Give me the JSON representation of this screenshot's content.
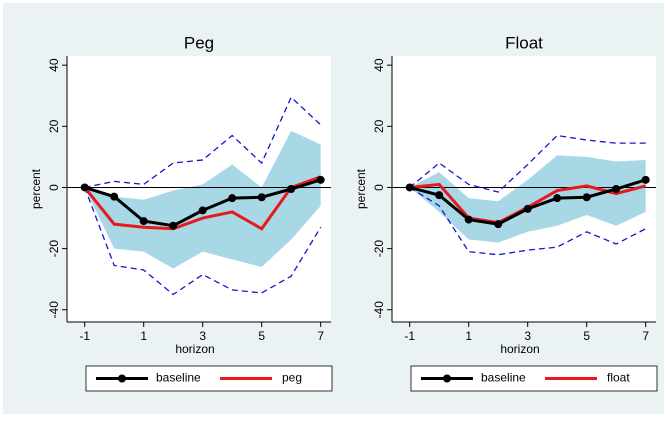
{
  "chart_data": [
    {
      "type": "line",
      "title": "Peg",
      "xlabel": "horizon",
      "ylabel": "percent",
      "x": [
        -1,
        0,
        1,
        2,
        3,
        4,
        5,
        6,
        7
      ],
      "xlim": [
        -1.6,
        7.35
      ],
      "ylim": [
        -44,
        43
      ],
      "xticks": [
        -1,
        1,
        3,
        5,
        7
      ],
      "yticks": [
        -40,
        -20,
        0,
        20,
        40
      ],
      "hline": 0,
      "series": [
        {
          "name": "baseline",
          "color": "#000000",
          "values": [
            0,
            -3,
            -11,
            -12.5,
            -7.5,
            -3.5,
            -3.2,
            -0.5,
            2.5
          ]
        },
        {
          "name": "peg",
          "color": "#e8191c",
          "values": [
            0,
            -12,
            -13,
            -13.5,
            -10,
            -8,
            -13.5,
            0,
            3.5
          ]
        }
      ],
      "band": {
        "color": "#a8d8e6",
        "upper": [
          0,
          -3,
          -4,
          -1,
          1,
          7.5,
          0,
          18.5,
          14
        ],
        "lower": [
          0,
          -20,
          -21,
          -26.5,
          -21,
          -23.5,
          -26,
          -17,
          -6
        ]
      },
      "dashed": {
        "color": "#1414d2",
        "upper": [
          0,
          2,
          1,
          8,
          9,
          17,
          8,
          29.5,
          20.5
        ],
        "lower": [
          0,
          -25.5,
          -27,
          -35,
          -28.5,
          -33.5,
          -34.5,
          -29,
          -13
        ]
      }
    },
    {
      "type": "line",
      "title": "Float",
      "xlabel": "horizon",
      "ylabel": "percent",
      "x": [
        -1,
        0,
        1,
        2,
        3,
        4,
        5,
        6,
        7
      ],
      "xlim": [
        -1.6,
        7.35
      ],
      "ylim": [
        -44,
        43
      ],
      "xticks": [
        -1,
        1,
        3,
        5,
        7
      ],
      "yticks": [
        -40,
        -20,
        0,
        20,
        40
      ],
      "hline": 0,
      "series": [
        {
          "name": "baseline",
          "color": "#000000",
          "values": [
            0,
            -2.5,
            -10.5,
            -12,
            -7,
            -3.5,
            -3.2,
            -0.5,
            2.5
          ]
        },
        {
          "name": "float",
          "color": "#e8191c",
          "values": [
            0,
            1,
            -10,
            -11.5,
            -6.5,
            -1,
            0.5,
            -2,
            0.5
          ]
        }
      ],
      "band": {
        "color": "#a8d8e6",
        "upper": [
          0,
          5,
          -3.5,
          -4.5,
          2.5,
          10.5,
          10,
          8.5,
          9
        ],
        "lower": [
          0,
          -8,
          -17,
          -18,
          -14.5,
          -12.5,
          -9,
          -12.5,
          -8
        ]
      },
      "dashed": {
        "color": "#1414d2",
        "upper": [
          0,
          8,
          1,
          -1.5,
          7.5,
          17,
          15.5,
          14.5,
          14.5
        ],
        "lower": [
          0,
          -6,
          -21,
          -22,
          -20.5,
          -19.5,
          -14.5,
          -18.5,
          -13.5
        ]
      }
    }
  ]
}
